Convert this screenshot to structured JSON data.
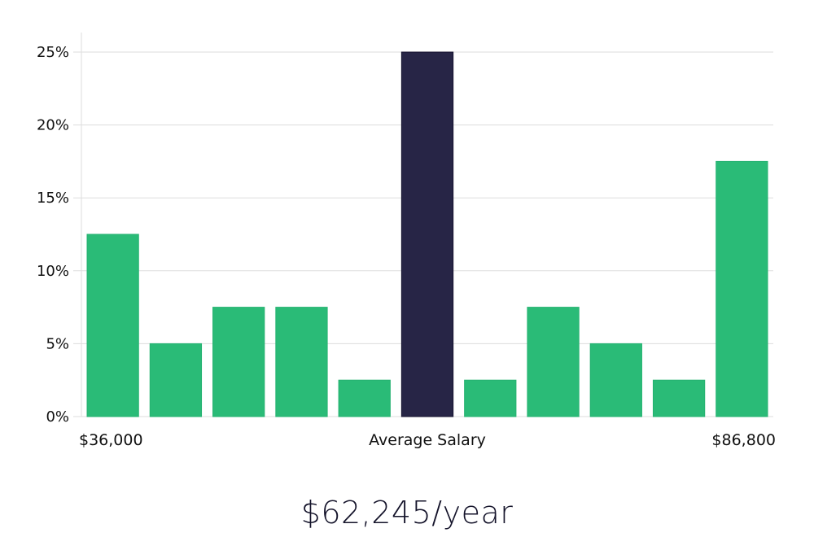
{
  "chart_data": {
    "type": "bar",
    "categories": [
      "",
      "",
      "",
      "",
      "",
      "",
      "",
      "",
      "",
      "",
      ""
    ],
    "values": [
      12.5,
      5,
      7.5,
      7.5,
      2.5,
      25,
      2.5,
      7.5,
      5,
      2.5,
      17.5
    ],
    "highlight_index": 5,
    "ylim": [
      0,
      25
    ],
    "yticks": [
      0,
      5,
      10,
      15,
      20,
      25
    ],
    "ytick_labels": [
      "0%",
      "5%",
      "10%",
      "15%",
      "20%",
      "25%"
    ],
    "x_labels": {
      "left": "$36,000",
      "center": "Average Salary",
      "right": "$86,800"
    },
    "grid": true,
    "colors": {
      "bar": "#2abb77",
      "highlight": "#272546",
      "grid": "#dddddd"
    }
  },
  "salary_text": "$62,245/year"
}
